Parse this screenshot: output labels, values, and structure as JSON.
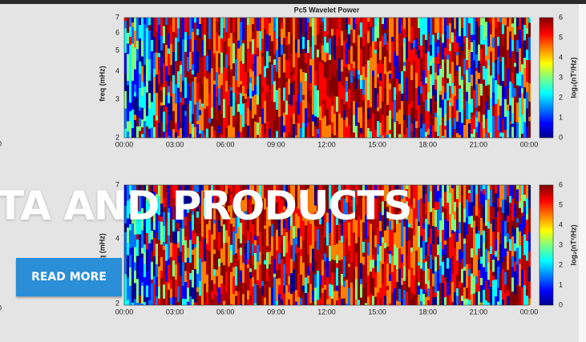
{
  "panels": [
    {
      "title": "Pc5 Wavelet Power",
      "y_label": "freq (mHz)",
      "y_ticks": [
        "7",
        "6",
        "5",
        "4",
        "3",
        "2"
      ],
      "x_ticks": [
        "00:00",
        "03:00",
        "06:00",
        "09:00",
        "12:00",
        "15:00",
        "18:00",
        "21:00",
        "00:00"
      ],
      "colorbar_ticks": [
        "6",
        "5",
        "4",
        "3",
        "2",
        "1",
        "0"
      ],
      "colorbar_label": "log₂(nT²/Hz)"
    },
    {
      "y_label": "freq (mHz)",
      "y_ticks": [
        "7",
        "4",
        "2"
      ],
      "x_ticks": [
        "00:00",
        "03:00",
        "06:00",
        "09:00",
        "12:00",
        "15:00",
        "18:00",
        "21:00",
        "00:00"
      ],
      "colorbar_ticks": [
        "6",
        "5",
        "4",
        "3",
        "2",
        "1",
        "0"
      ],
      "colorbar_label": "log₂(nT²/Hz)"
    }
  ],
  "edge_labels": [
    "0",
    "0"
  ],
  "hero": {
    "title": "TA AND PRODUCTS",
    "button": "READ MORE"
  }
}
